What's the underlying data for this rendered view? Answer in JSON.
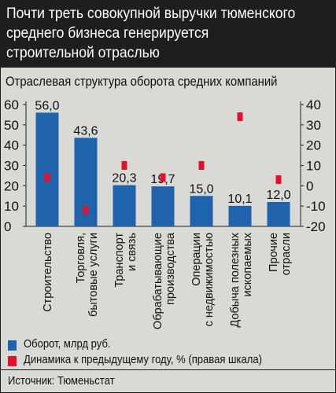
{
  "title": "Почти треть совокупной выручки тюменского среднего бизнеса генерируется строительной отраслью",
  "subtitle": "Отраслевая структура оборота средних компаний",
  "source": "Источник: Тюменьстат",
  "colors": {
    "bar": "#1f63ad",
    "marker": "#e3122c",
    "header_bg": "#1e1e1e",
    "background": "#d9d9d6"
  },
  "chart_data": {
    "type": "bar",
    "categories": [
      [
        "Строительство"
      ],
      [
        "Торговля,",
        "бытовые услуги"
      ],
      [
        "Транспорт",
        "и связь"
      ],
      [
        "Обрабатывающие",
        "производства"
      ],
      [
        "Операции",
        "с недвижимостью"
      ],
      [
        "Добыча полезных",
        "ископаемых"
      ],
      [
        "Прочие",
        "отрасли"
      ]
    ],
    "series": [
      {
        "name": "Оборот, млрд руб.",
        "axis": "left",
        "values": [
          56.0,
          43.6,
          20.3,
          19.7,
          15.0,
          10.1,
          12.0
        ],
        "labels": [
          "56,0",
          "43,6",
          "20,3",
          "19,7",
          "15,0",
          "10,1",
          "12,0"
        ]
      },
      {
        "name": "Динамика к предыдущему году, % (правая шкала)",
        "axis": "right",
        "values": [
          4,
          -12,
          10,
          4,
          10,
          34,
          3
        ]
      }
    ],
    "ylim_left": [
      0,
      60
    ],
    "yticks_left": [
      0,
      10,
      20,
      30,
      40,
      50,
      60
    ],
    "ylim_right": [
      -20,
      40
    ],
    "yticks_right": [
      -20,
      -10,
      0,
      10,
      20,
      30,
      40
    ],
    "legend": "bottom"
  }
}
